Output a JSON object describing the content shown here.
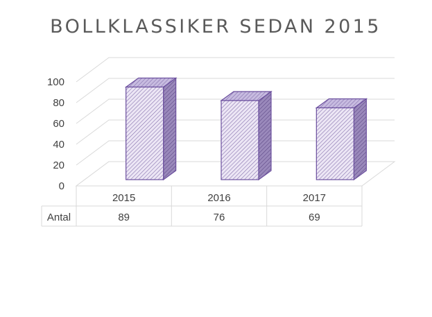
{
  "chart_data": {
    "type": "bar",
    "title": "BOLLKLASSIKER SEDAN 2015",
    "categories": [
      "2015",
      "2016",
      "2017"
    ],
    "series": [
      {
        "name": "Antal",
        "values": [
          89,
          76,
          69
        ]
      }
    ],
    "ylim": [
      0,
      100
    ],
    "yticks": [
      0,
      20,
      40,
      60,
      80,
      100
    ],
    "grid": true,
    "data_table": true,
    "style": "3d-column",
    "bar_fill_color": "#ece6f5",
    "bar_hatch_color": "#7f6aa8",
    "bar_edge_color": "#6b4f9e",
    "bar_side_color": "#8670b0",
    "grid_color": "#d9d9d9",
    "text_color": "#404040"
  }
}
